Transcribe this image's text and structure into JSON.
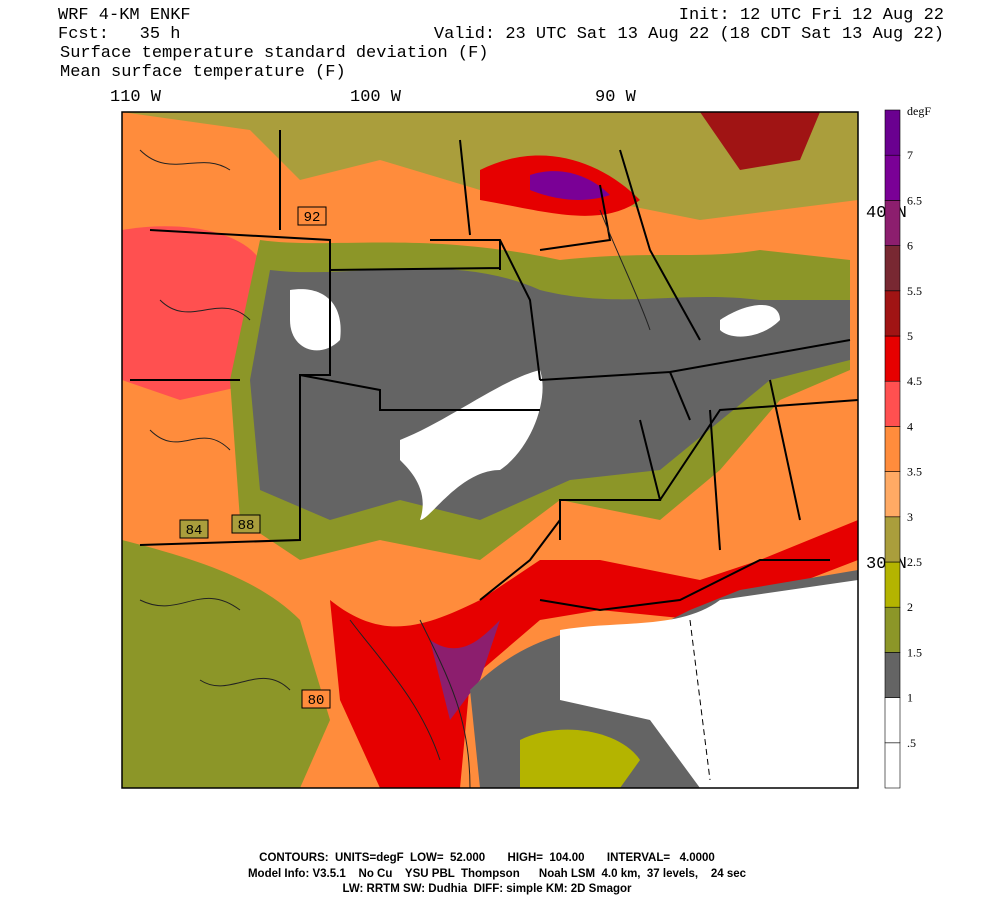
{
  "header": {
    "model": "WRF 4-KM ENKF",
    "forecast": "Fcst:   35 h",
    "init": "Init: 12 UTC Fri 12 Aug 22",
    "valid": "Valid: 23 UTC Sat 13 Aug 22 (18 CDT Sat 13 Aug 22)",
    "fields": [
      "Surface temperature standard deviation (F)",
      "Mean surface temperature (F)"
    ]
  },
  "map": {
    "longitude_labels": [
      "110 W",
      "100 W",
      "90 W"
    ],
    "latitude_labels": [
      "40 N",
      "30 N"
    ],
    "contour_labels": [
      "92",
      "84",
      "88",
      "80"
    ]
  },
  "colorbar": {
    "unit": "degF",
    "labels": [
      ".5",
      "1",
      "1.5",
      "2",
      "2.5",
      "3",
      "3.5",
      "4",
      "4.5",
      "5",
      "5.5",
      "6",
      "6.5",
      "7"
    ],
    "colors": [
      "#ffffff",
      "#ffffff",
      "#646464",
      "#8c9628",
      "#b4b400",
      "#aa9e3c",
      "#ffaa64",
      "#ff8c3c",
      "#ff5050",
      "#e60000",
      "#a01414",
      "#782832",
      "#8c1e6e",
      "#7a0096",
      "#6a0090"
    ]
  },
  "footer": [
    "CONTOURS:  UNITS=degF  LOW=  52.000       HIGH=  104.00       INTERVAL=   4.0000",
    "Model Info: V3.5.1    No Cu    YSU PBL  Thompson      Noah LSM  4.0 km,  37 levels,    24 sec",
    "LW: RRTM SW: Dudhia  DIFF: simple KM: 2D Smagor"
  ]
}
